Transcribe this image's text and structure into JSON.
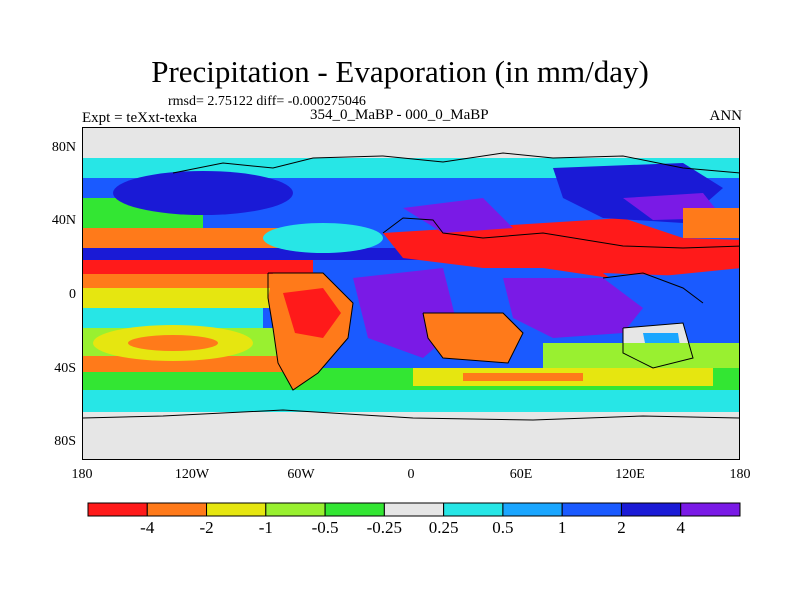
{
  "chart_data": {
    "type": "heatmap",
    "title": "Precipitation - Evaporation (in mm/day)",
    "stats_line": "rmsd= 2.75122 diff= -0.000275046",
    "subtitle": "354_0_MaBP - 000_0_MaBP",
    "left_label": "Expt = teXxt-texka",
    "right_label": "ANN",
    "x_ticks": [
      "180",
      "120W",
      "60W",
      "0",
      "60E",
      "120E",
      "180"
    ],
    "y_ticks": [
      "80N",
      "40N",
      "0",
      "40S",
      "80S"
    ],
    "xlim": [
      -180,
      180
    ],
    "ylim": [
      -90,
      90
    ],
    "colorbar": {
      "colors": [
        "#ff1a1a",
        "#ff7a1a",
        "#e6e610",
        "#99f030",
        "#33e633",
        "#e6e6e6",
        "#27e6e6",
        "#1aa6ff",
        "#1a5aff",
        "#1a1ad6",
        "#7a1ae6"
      ],
      "labels": [
        "-4",
        "-2",
        "-1",
        "-0.5",
        "-0.25",
        "0.25",
        "0.5",
        "1",
        "2",
        "4"
      ]
    }
  }
}
